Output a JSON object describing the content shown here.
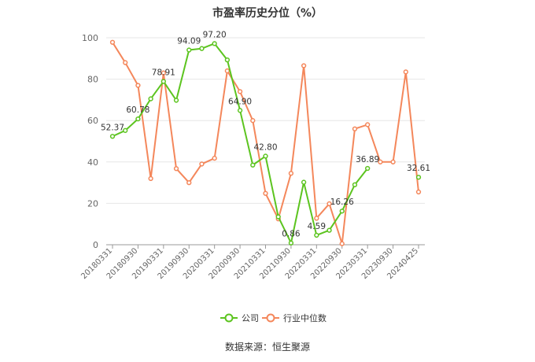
{
  "page": {
    "title": "市盈率历史分位（%）",
    "source": "数据来源：恒生聚源"
  },
  "chart_data": {
    "type": "line",
    "title": "市盈率历史分位（%）",
    "xlabel": "",
    "ylabel": "",
    "ylim": [
      0,
      100
    ],
    "y_ticks": [
      0,
      20,
      40,
      60,
      80,
      100
    ],
    "grid": true,
    "legend_position": "bottom-center",
    "x_tick_labels": [
      "20180331",
      "20180930",
      "20190331",
      "20190930",
      "20200331",
      "20200930",
      "20210331",
      "20210930",
      "20220331",
      "20220930",
      "20230331",
      "20230930",
      "20240425"
    ],
    "x_tick_positions": [
      0,
      2,
      4,
      6,
      8,
      10,
      12,
      14,
      16,
      18,
      20,
      22,
      24
    ],
    "n_points": 25,
    "series": [
      {
        "name": "公司",
        "color": "#5cc41f",
        "values": [
          52.37,
          55.2,
          60.78,
          70.5,
          78.91,
          69.8,
          94.09,
          94.8,
          97.2,
          89.3,
          64.9,
          38.5,
          42.8,
          13.5,
          0.86,
          30.2,
          4.59,
          7.0,
          16.26,
          29.0,
          36.89,
          null,
          null,
          null,
          32.61
        ],
        "labels": [
          {
            "index": 0,
            "text": "52.37"
          },
          {
            "index": 2,
            "text": "60.78"
          },
          {
            "index": 4,
            "text": "78.91"
          },
          {
            "index": 6,
            "text": "94.09"
          },
          {
            "index": 8,
            "text": "97.20"
          },
          {
            "index": 10,
            "text": "64.90"
          },
          {
            "index": 12,
            "text": "42.80"
          },
          {
            "index": 14,
            "text": "0.86"
          },
          {
            "index": 16,
            "text": "4.59"
          },
          {
            "index": 18,
            "text": "16.26"
          },
          {
            "index": 20,
            "text": "36.89"
          },
          {
            "index": 24,
            "text": "32.61"
          }
        ]
      },
      {
        "name": "行业中位数",
        "color": "#f4875b",
        "values": [
          97.8,
          88.0,
          77.0,
          32.0,
          83.0,
          36.8,
          30.0,
          39.0,
          41.8,
          84.0,
          74.0,
          60.0,
          24.8,
          12.5,
          34.5,
          86.5,
          12.8,
          19.8,
          0.5,
          56.0,
          58.0,
          40.0,
          40.0,
          83.5,
          25.5
        ]
      }
    ]
  }
}
